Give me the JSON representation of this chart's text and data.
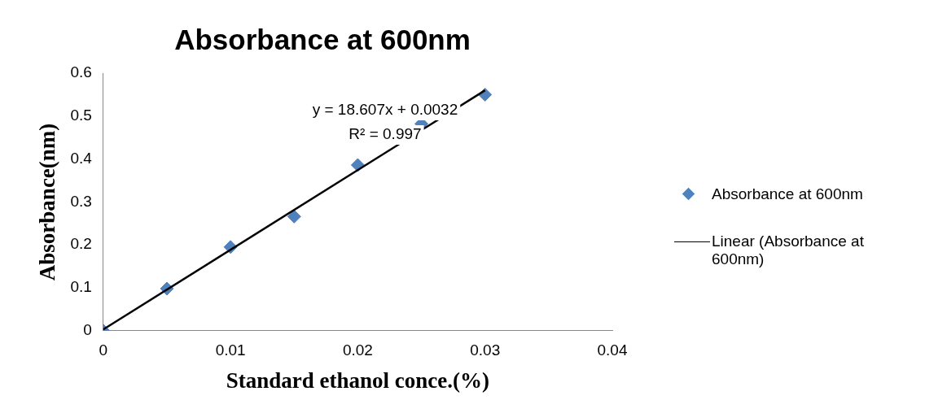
{
  "chart_data": {
    "type": "scatter",
    "title": "Absorbance at 600nm",
    "xlabel": "Standard ethanol conce.(%)",
    "ylabel": "Absorbance(nm)",
    "x": [
      0,
      0.005,
      0.01,
      0.015,
      0.02,
      0.025,
      0.03
    ],
    "series": [
      {
        "name": "Absorbance at 600nm",
        "color": "#4f81bd",
        "marker": "diamond",
        "values": [
          0,
          0.098,
          0.195,
          0.266,
          0.386,
          0.482,
          0.55
        ]
      },
      {
        "name": "Linear (Absorbance at 600nm)",
        "type": "line",
        "color": "#000000",
        "marker": "none",
        "x": [
          0,
          0.03
        ],
        "values": [
          0.003,
          0.56
        ]
      }
    ],
    "annotations": [
      "y = 18.607x + 0.0032",
      "R² = 0.997"
    ],
    "xlim": [
      0,
      0.04
    ],
    "xticks": [
      0,
      0.01,
      0.02,
      0.03,
      0.04
    ],
    "ylim": [
      0,
      0.6
    ],
    "yticks": [
      0,
      0.1,
      0.2,
      0.3,
      0.4,
      0.5,
      0.6
    ],
    "grid": false,
    "legend": "right",
    "line_style": "solid"
  }
}
